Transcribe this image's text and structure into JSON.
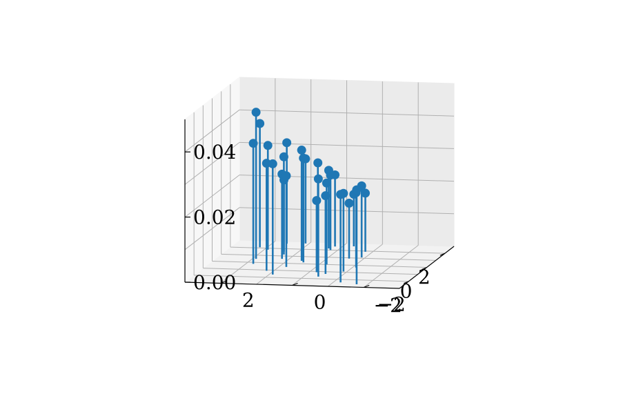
{
  "chart_data": {
    "type": "stem3d",
    "title": "",
    "xlabel": "",
    "ylabel": "",
    "zlabel": "",
    "xlim": [
      -3,
      3
    ],
    "ylim": [
      -3,
      3
    ],
    "zlim": [
      0,
      0.05
    ],
    "x_ticks": [
      -2,
      0,
      2
    ],
    "x_tick_labels": [
      "−2",
      "0",
      "2"
    ],
    "y_ticks": [
      -2,
      0,
      2
    ],
    "y_tick_labels": [
      "−2",
      "0",
      "2"
    ],
    "z_ticks": [
      0.0,
      0.02,
      0.04
    ],
    "z_tick_labels": [
      "0.00",
      "0.02",
      "0.04"
    ],
    "grid": true,
    "color": "#1f77b4",
    "points": [
      {
        "x": -2.6,
        "y": -1.7,
        "z": 0.029
      },
      {
        "x": -2.4,
        "y": -1.2,
        "z": 0.027
      },
      {
        "x": -1.7,
        "y": -0.4,
        "z": 0.03
      },
      {
        "x": -1.3,
        "y": -0.5,
        "z": 0.024
      },
      {
        "x": -1.1,
        "y": -0.2,
        "z": 0.022
      },
      {
        "x": -0.9,
        "y": -0.9,
        "z": 0.024
      },
      {
        "x": -1.6,
        "y": 0.9,
        "z": 0.034
      },
      {
        "x": -1.1,
        "y": 1.2,
        "z": 0.033
      },
      {
        "x": -0.3,
        "y": -1.1,
        "z": 0.023
      },
      {
        "x": 0.0,
        "y": -0.2,
        "z": 0.025
      },
      {
        "x": 0.2,
        "y": 0.5,
        "z": 0.032
      },
      {
        "x": 0.4,
        "y": 0.6,
        "z": 0.034
      },
      {
        "x": -0.2,
        "y": 1.8,
        "z": 0.037
      },
      {
        "x": 0.5,
        "y": 1.9,
        "z": 0.045
      },
      {
        "x": 0.9,
        "y": -0.6,
        "z": 0.017
      },
      {
        "x": 1.1,
        "y": -0.9,
        "z": 0.022
      },
      {
        "x": 1.4,
        "y": 0.4,
        "z": 0.028
      },
      {
        "x": 1.2,
        "y": 1.3,
        "z": 0.03
      },
      {
        "x": 1.6,
        "y": 1.4,
        "z": 0.022
      },
      {
        "x": 1.9,
        "y": -0.8,
        "z": 0.018
      },
      {
        "x": 2.0,
        "y": 0.2,
        "z": 0.023
      },
      {
        "x": 2.2,
        "y": 0.3,
        "z": 0.024
      },
      {
        "x": 1.8,
        "y": 1.9,
        "z": 0.032
      },
      {
        "x": 2.1,
        "y": 2.2,
        "z": 0.038
      },
      {
        "x": 2.5,
        "y": 0.2,
        "z": 0.022
      },
      {
        "x": 2.8,
        "y": 1.1,
        "z": 0.026
      },
      {
        "x": 2.6,
        "y": -0.3,
        "z": 0.016
      },
      {
        "x": 2.7,
        "y": 1.6,
        "z": 0.031
      },
      {
        "x": 0.6,
        "y": 1.2,
        "z": 0.026
      },
      {
        "x": -0.5,
        "y": 0.8,
        "z": 0.028
      }
    ]
  }
}
